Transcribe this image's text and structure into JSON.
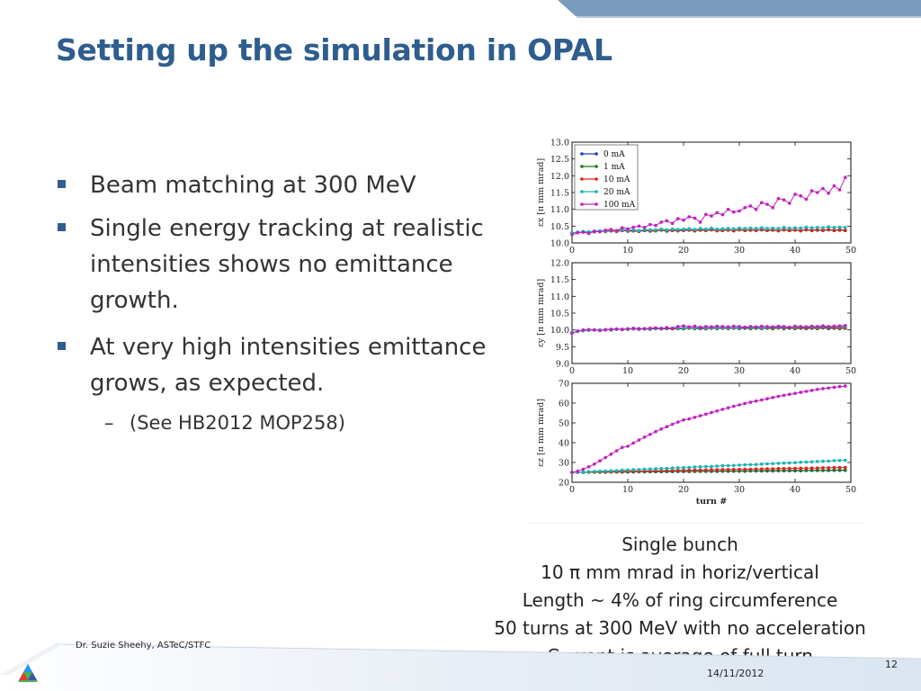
{
  "slide": {
    "title": "Setting up the simulation in OPAL",
    "bullets": [
      "Beam matching at 300 MeV",
      "Single energy tracking at realistic intensities shows no emittance growth.",
      "At very high intensities emittance grows, as expected."
    ],
    "sub_bullet": {
      "dash": "–",
      "text": "(See HB2012 MOP258)"
    },
    "caption": [
      "Single bunch",
      "10 π mm mrad in horiz/vertical",
      "Length ~ 4% of ring circumference",
      "50 turns at 300 MeV with no acceleration",
      "Current is average of full turn"
    ],
    "footer": {
      "author": "Dr. Suzie Sheehy, ASTeC/STFC",
      "date": "14/11/2012",
      "page_number": "12"
    },
    "colors": {
      "title": "#2e5d8e",
      "band_dark": "#7b9bbd",
      "band_light": "#dbe5f0"
    }
  },
  "chart_data": [
    {
      "type": "line",
      "ylabel": "εx [π mm mrad]",
      "xlabel": "",
      "xlim": [
        0,
        50
      ],
      "ylim": [
        10.0,
        13.0
      ],
      "xticks": [
        0,
        10,
        20,
        30,
        40,
        50
      ],
      "yticks": [
        "10.0",
        "10.5",
        "11.0",
        "11.5",
        "12.0",
        "12.5",
        "13.0"
      ],
      "legend_position": "top-left",
      "series": [
        {
          "name": "0 mA",
          "color": "#1f3fbf",
          "values": [
            10.3,
            10.31,
            10.33,
            10.32,
            10.33,
            10.35,
            10.34,
            10.36,
            10.34,
            10.37,
            10.35,
            10.36,
            10.34,
            10.37,
            10.35,
            10.36,
            10.38,
            10.35,
            10.37,
            10.36,
            10.37,
            10.38,
            10.36,
            10.38,
            10.37,
            10.39,
            10.36,
            10.37,
            10.38,
            10.36,
            10.39,
            10.37,
            10.38,
            10.37,
            10.39,
            10.37,
            10.38,
            10.36,
            10.39,
            10.37,
            10.38,
            10.36,
            10.39,
            10.37,
            10.38,
            10.37,
            10.39,
            10.37,
            10.38,
            10.37
          ]
        },
        {
          "name": "1 mA",
          "color": "#1a7a1a",
          "values": [
            10.3,
            10.31,
            10.33,
            10.32,
            10.33,
            10.35,
            10.34,
            10.36,
            10.35,
            10.37,
            10.35,
            10.36,
            10.35,
            10.37,
            10.36,
            10.36,
            10.38,
            10.36,
            10.37,
            10.36,
            10.38,
            10.38,
            10.36,
            10.38,
            10.37,
            10.39,
            10.37,
            10.37,
            10.38,
            10.37,
            10.39,
            10.37,
            10.38,
            10.38,
            10.39,
            10.37,
            10.38,
            10.37,
            10.39,
            10.37,
            10.38,
            10.37,
            10.39,
            10.37,
            10.38,
            10.38,
            10.39,
            10.37,
            10.38,
            10.37
          ]
        },
        {
          "name": "10 mA",
          "color": "#e02020",
          "values": [
            10.3,
            10.32,
            10.33,
            10.33,
            10.34,
            10.35,
            10.35,
            10.36,
            10.35,
            10.37,
            10.36,
            10.37,
            10.35,
            10.38,
            10.36,
            10.37,
            10.39,
            10.36,
            10.38,
            10.37,
            10.38,
            10.39,
            10.37,
            10.39,
            10.38,
            10.4,
            10.37,
            10.38,
            10.39,
            10.37,
            10.4,
            10.38,
            10.39,
            10.38,
            10.4,
            10.38,
            10.39,
            10.37,
            10.4,
            10.38,
            10.39,
            10.37,
            10.4,
            10.38,
            10.39,
            10.38,
            10.4,
            10.38,
            10.39,
            10.38
          ]
        },
        {
          "name": "20 mA",
          "color": "#18b5b5",
          "values": [
            10.3,
            10.32,
            10.34,
            10.33,
            10.35,
            10.36,
            10.36,
            10.38,
            10.37,
            10.39,
            10.38,
            10.39,
            10.37,
            10.4,
            10.39,
            10.39,
            10.41,
            10.39,
            10.41,
            10.4,
            10.41,
            10.42,
            10.4,
            10.43,
            10.41,
            10.44,
            10.41,
            10.42,
            10.43,
            10.42,
            10.44,
            10.43,
            10.44,
            10.43,
            10.45,
            10.43,
            10.44,
            10.43,
            10.46,
            10.44,
            10.45,
            10.44,
            10.47,
            10.45,
            10.46,
            10.45,
            10.48,
            10.46,
            10.47,
            10.46
          ]
        },
        {
          "name": "100 mA",
          "color": "#c020c0",
          "values": [
            10.25,
            10.3,
            10.32,
            10.28,
            10.35,
            10.33,
            10.38,
            10.4,
            10.36,
            10.45,
            10.42,
            10.47,
            10.5,
            10.46,
            10.55,
            10.52,
            10.62,
            10.66,
            10.58,
            10.72,
            10.68,
            10.78,
            10.74,
            10.62,
            10.85,
            10.8,
            10.9,
            10.84,
            11.0,
            10.92,
            10.95,
            11.05,
            11.1,
            11.0,
            11.2,
            11.15,
            11.05,
            11.32,
            11.28,
            11.18,
            11.45,
            11.4,
            11.3,
            11.55,
            11.5,
            11.62,
            11.48,
            11.7,
            11.58,
            11.95
          ]
        }
      ]
    },
    {
      "type": "line",
      "ylabel": "εy [π mm mrad]",
      "xlabel": "",
      "xlim": [
        0,
        50
      ],
      "ylim": [
        9.0,
        12.0
      ],
      "xticks": [
        0,
        10,
        20,
        30,
        40,
        50
      ],
      "yticks": [
        "9.0",
        "9.5",
        "10.0",
        "10.5",
        "11.0",
        "11.5",
        "12.0"
      ],
      "series": [
        {
          "name": "0 mA",
          "color": "#1f3fbf",
          "values": [
            9.92,
            9.96,
            9.98,
            9.99,
            10.0,
            9.99,
            10.01,
            10.0,
            10.02,
            10.01,
            10.02,
            10.03,
            10.02,
            10.03,
            10.02,
            10.04,
            10.03,
            10.04,
            10.03,
            10.04,
            10.03,
            10.05,
            10.04,
            10.04,
            10.03,
            10.05,
            10.04,
            10.05,
            10.04,
            10.05,
            10.04,
            10.05,
            10.04,
            10.05,
            10.04,
            10.05,
            10.04,
            10.06,
            10.04,
            10.05,
            10.04,
            10.05,
            10.04,
            10.05,
            10.04,
            10.06,
            10.04,
            10.05,
            10.04,
            10.05
          ]
        },
        {
          "name": "1 mA",
          "color": "#1a7a1a",
          "values": [
            9.92,
            9.96,
            9.98,
            9.99,
            10.0,
            9.99,
            10.01,
            10.0,
            10.02,
            10.01,
            10.02,
            10.03,
            10.02,
            10.03,
            10.02,
            10.04,
            10.03,
            10.04,
            10.03,
            10.04,
            10.04,
            10.05,
            10.04,
            10.05,
            10.04,
            10.05,
            10.05,
            10.05,
            10.04,
            10.05,
            10.05,
            10.05,
            10.04,
            10.05,
            10.05,
            10.05,
            10.04,
            10.06,
            10.05,
            10.05,
            10.04,
            10.05,
            10.05,
            10.05,
            10.04,
            10.06,
            10.05,
            10.05,
            10.04,
            10.05
          ]
        },
        {
          "name": "10 mA",
          "color": "#e02020",
          "values": [
            9.92,
            9.96,
            9.98,
            9.99,
            10.0,
            10.0,
            10.01,
            10.01,
            10.02,
            10.02,
            10.03,
            10.03,
            10.03,
            10.04,
            10.03,
            10.05,
            10.04,
            10.05,
            10.04,
            10.05,
            10.05,
            10.06,
            10.05,
            10.06,
            10.05,
            10.06,
            10.06,
            10.06,
            10.05,
            10.06,
            10.06,
            10.07,
            10.06,
            10.07,
            10.06,
            10.07,
            10.06,
            10.08,
            10.06,
            10.07,
            10.06,
            10.07,
            10.07,
            10.07,
            10.06,
            10.08,
            10.07,
            10.07,
            10.06,
            10.07
          ]
        },
        {
          "name": "20 mA",
          "color": "#18b5b5",
          "values": [
            9.92,
            9.96,
            9.98,
            9.99,
            10.0,
            10.0,
            10.01,
            10.01,
            10.02,
            10.02,
            10.03,
            10.04,
            10.03,
            10.04,
            10.04,
            10.05,
            10.05,
            10.06,
            10.05,
            10.06,
            10.06,
            10.07,
            10.06,
            10.07,
            10.06,
            10.07,
            10.07,
            10.07,
            10.06,
            10.07,
            10.07,
            10.08,
            10.07,
            10.08,
            10.07,
            10.08,
            10.08,
            10.09,
            10.08,
            10.08,
            10.08,
            10.09,
            10.09,
            10.09,
            10.08,
            10.1,
            10.09,
            10.1,
            10.09,
            10.1
          ]
        },
        {
          "name": "100 mA",
          "color": "#c020c0",
          "values": [
            9.9,
            9.97,
            10.0,
            10.01,
            10.0,
            9.98,
            10.0,
            10.02,
            10.03,
            10.01,
            10.03,
            10.05,
            10.04,
            10.03,
            10.05,
            10.06,
            10.04,
            10.07,
            10.05,
            10.1,
            10.12,
            10.09,
            10.11,
            10.08,
            10.1,
            10.09,
            10.11,
            10.1,
            10.09,
            10.11,
            10.1,
            10.08,
            10.1,
            10.09,
            10.11,
            10.1,
            10.09,
            10.11,
            10.1,
            10.08,
            10.11,
            10.1,
            10.09,
            10.11,
            10.1,
            10.12,
            10.1,
            10.11,
            10.12,
            10.13
          ]
        }
      ]
    },
    {
      "type": "line",
      "ylabel": "εz [π mm mrad]",
      "xlabel": "turn #",
      "xlim": [
        0,
        50
      ],
      "ylim": [
        20,
        70
      ],
      "xticks": [
        0,
        10,
        20,
        30,
        40,
        50
      ],
      "yticks": [
        "20",
        "30",
        "40",
        "50",
        "60",
        "70"
      ],
      "series": [
        {
          "name": "0 mA",
          "color": "#1f3fbf",
          "values": [
            25.0,
            25.0,
            25.0,
            25.1,
            25.1,
            25.1,
            25.1,
            25.2,
            25.2,
            25.2,
            25.2,
            25.2,
            25.3,
            25.3,
            25.3,
            25.3,
            25.3,
            25.4,
            25.4,
            25.4,
            25.4,
            25.4,
            25.5,
            25.5,
            25.5,
            25.5,
            25.5,
            25.6,
            25.6,
            25.6,
            25.6,
            25.6,
            25.7,
            25.7,
            25.7,
            25.7,
            25.7,
            25.8,
            25.8,
            25.8,
            25.8,
            25.8,
            25.9,
            25.9,
            25.9,
            25.9,
            25.9,
            26.0,
            26.0,
            26.0
          ]
        },
        {
          "name": "1 mA",
          "color": "#1a7a1a",
          "values": [
            25.0,
            25.0,
            25.0,
            25.1,
            25.1,
            25.1,
            25.1,
            25.2,
            25.2,
            25.2,
            25.2,
            25.3,
            25.3,
            25.3,
            25.3,
            25.4,
            25.4,
            25.4,
            25.4,
            25.5,
            25.5,
            25.5,
            25.5,
            25.6,
            25.6,
            25.6,
            25.6,
            25.7,
            25.7,
            25.7,
            25.7,
            25.8,
            25.8,
            25.8,
            25.8,
            25.9,
            25.9,
            25.9,
            25.9,
            26.0,
            26.0,
            26.0,
            26.0,
            26.1,
            26.1,
            26.1,
            26.1,
            26.2,
            26.2,
            26.2
          ]
        },
        {
          "name": "10 mA",
          "color": "#e02020",
          "values": [
            25.0,
            25.1,
            25.1,
            25.2,
            25.2,
            25.3,
            25.3,
            25.4,
            25.4,
            25.5,
            25.5,
            25.6,
            25.6,
            25.7,
            25.7,
            25.8,
            25.8,
            25.9,
            25.9,
            26.0,
            26.0,
            26.1,
            26.1,
            26.2,
            26.2,
            26.3,
            26.3,
            26.4,
            26.4,
            26.5,
            26.5,
            26.6,
            26.6,
            26.7,
            26.7,
            26.8,
            26.8,
            26.9,
            26.9,
            27.0,
            27.0,
            27.1,
            27.1,
            27.2,
            27.2,
            27.3,
            27.3,
            27.4,
            27.4,
            27.5
          ]
        },
        {
          "name": "20 mA",
          "color": "#18b5b5",
          "values": [
            25.0,
            25.1,
            25.2,
            25.3,
            25.5,
            25.6,
            25.7,
            25.8,
            25.9,
            26.1,
            26.2,
            26.3,
            26.4,
            26.6,
            26.7,
            26.8,
            26.9,
            27.0,
            27.2,
            27.3,
            27.4,
            27.5,
            27.7,
            27.8,
            27.9,
            28.0,
            28.2,
            28.3,
            28.4,
            28.5,
            28.7,
            28.8,
            28.9,
            29.0,
            29.2,
            29.3,
            29.4,
            29.6,
            29.7,
            29.8,
            29.9,
            30.1,
            30.2,
            30.3,
            30.5,
            30.6,
            30.7,
            30.9,
            31.0,
            31.1
          ]
        },
        {
          "name": "100 mA",
          "color": "#c020c0",
          "values": [
            25.0,
            25.6,
            26.6,
            27.8,
            29.2,
            30.8,
            32.5,
            34.2,
            35.9,
            37.6,
            38.2,
            39.8,
            41.3,
            42.8,
            44.2,
            45.6,
            46.9,
            48.1,
            49.3,
            50.4,
            51.5,
            52.0,
            52.8,
            53.6,
            54.4,
            55.2,
            56.0,
            56.8,
            57.6,
            58.4,
            59.1,
            59.8,
            60.4,
            61.0,
            61.6,
            62.2,
            62.8,
            63.4,
            63.9,
            64.4,
            64.9,
            65.4,
            65.9,
            66.4,
            66.9,
            67.3,
            67.6,
            68.0,
            68.3,
            68.6
          ]
        }
      ]
    }
  ]
}
